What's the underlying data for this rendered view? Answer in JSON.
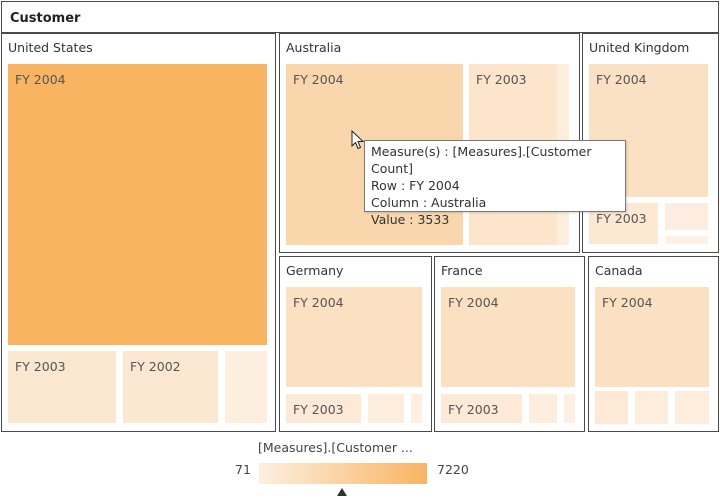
{
  "chart_data": {
    "type": "treemap",
    "title": "Customer",
    "groups": [
      {
        "name": "United States",
        "cells": [
          {
            "label": "FY 2004",
            "color": "#f9b462"
          },
          {
            "label": "FY 2003",
            "color": "#fbe6cf"
          },
          {
            "label": "FY 2002",
            "color": "#fce8d2"
          },
          {
            "label": "",
            "color": "#fdefe0"
          }
        ]
      },
      {
        "name": "Australia",
        "cells": [
          {
            "label": "FY 2004",
            "color": "#f9d6ac",
            "value": 3533
          },
          {
            "label": "FY 2003",
            "color": "#fce5cb"
          },
          {
            "label": "",
            "color": "#fdeedd"
          }
        ]
      },
      {
        "name": "United Kingdom",
        "cells": [
          {
            "label": "FY 2004",
            "color": "#fbe1c4"
          },
          {
            "label": "FY 2003",
            "color": "#fce8d3"
          },
          {
            "label": "",
            "color": "#fdede0"
          },
          {
            "label": "",
            "color": "#fdf0e4"
          }
        ]
      },
      {
        "name": "Germany",
        "cells": [
          {
            "label": "FY 2004",
            "color": "#fbe0c2"
          },
          {
            "label": "FY 2003",
            "color": "#fde9d5"
          },
          {
            "label": "",
            "color": "#fdeddd"
          },
          {
            "label": "",
            "color": "#fdf0e3"
          }
        ]
      },
      {
        "name": "France",
        "cells": [
          {
            "label": "FY 2004",
            "color": "#fbe0c2"
          },
          {
            "label": "FY 2003",
            "color": "#fde9d5"
          },
          {
            "label": "",
            "color": "#fdeddd"
          },
          {
            "label": "",
            "color": "#fdf0e3"
          }
        ]
      },
      {
        "name": "Canada",
        "cells": [
          {
            "label": "FY 2004",
            "color": "#fbe0c2"
          },
          {
            "label": "",
            "color": "#fde9d5"
          },
          {
            "label": "",
            "color": "#fdeddd"
          },
          {
            "label": "",
            "color": "#fdeddd"
          }
        ]
      }
    ],
    "legend": {
      "title": "[Measures].[Customer ...",
      "min": "71",
      "max": "7220",
      "color_low": "#fdefe0",
      "color_high": "#f9b462"
    }
  },
  "tooltip": {
    "line1": "Measure(s) : [Measures].[Customer Count]",
    "line2": "Row : FY 2004",
    "line3": "Column : Australia",
    "line4": "Value : 3533"
  }
}
